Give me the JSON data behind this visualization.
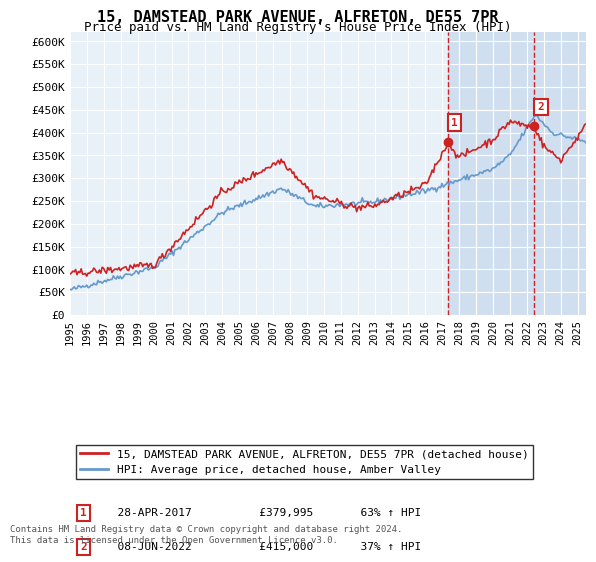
{
  "title": "15, DAMSTEAD PARK AVENUE, ALFRETON, DE55 7PR",
  "subtitle": "Price paid vs. HM Land Registry's House Price Index (HPI)",
  "ylabel_ticks": [
    "£0",
    "£50K",
    "£100K",
    "£150K",
    "£200K",
    "£250K",
    "£300K",
    "£350K",
    "£400K",
    "£450K",
    "£500K",
    "£550K",
    "£600K"
  ],
  "ytick_values": [
    0,
    50000,
    100000,
    150000,
    200000,
    250000,
    300000,
    350000,
    400000,
    450000,
    500000,
    550000,
    600000
  ],
  "ylim": [
    0,
    620000
  ],
  "xlim_start": 1995.0,
  "xlim_end": 2025.5,
  "xtick_years": [
    1995,
    1996,
    1997,
    1998,
    1999,
    2000,
    2001,
    2002,
    2003,
    2004,
    2005,
    2006,
    2007,
    2008,
    2009,
    2010,
    2011,
    2012,
    2013,
    2014,
    2015,
    2016,
    2017,
    2018,
    2019,
    2020,
    2021,
    2022,
    2023,
    2024,
    2025
  ],
  "transaction1_x": 2017.32,
  "transaction1_y": 379995,
  "transaction1_label": "1",
  "transaction1_date": "28-APR-2017",
  "transaction1_price": "£379,995",
  "transaction1_pct": "63% ↑ HPI",
  "transaction2_x": 2022.44,
  "transaction2_y": 415000,
  "transaction2_label": "2",
  "transaction2_date": "08-JUN-2022",
  "transaction2_price": "£415,000",
  "transaction2_pct": "37% ↑ HPI",
  "hpi_color": "#6699cc",
  "price_color": "#cc2222",
  "transaction_color": "#cc2222",
  "background_plot": "#e8f0f8",
  "background_highlight": "#d0dff0",
  "grid_color": "#ffffff",
  "legend_line1": "15, DAMSTEAD PARK AVENUE, ALFRETON, DE55 7PR (detached house)",
  "legend_line2": "HPI: Average price, detached house, Amber Valley",
  "footnote": "Contains HM Land Registry data © Crown copyright and database right 2024.\nThis data is licensed under the Open Government Licence v3.0."
}
